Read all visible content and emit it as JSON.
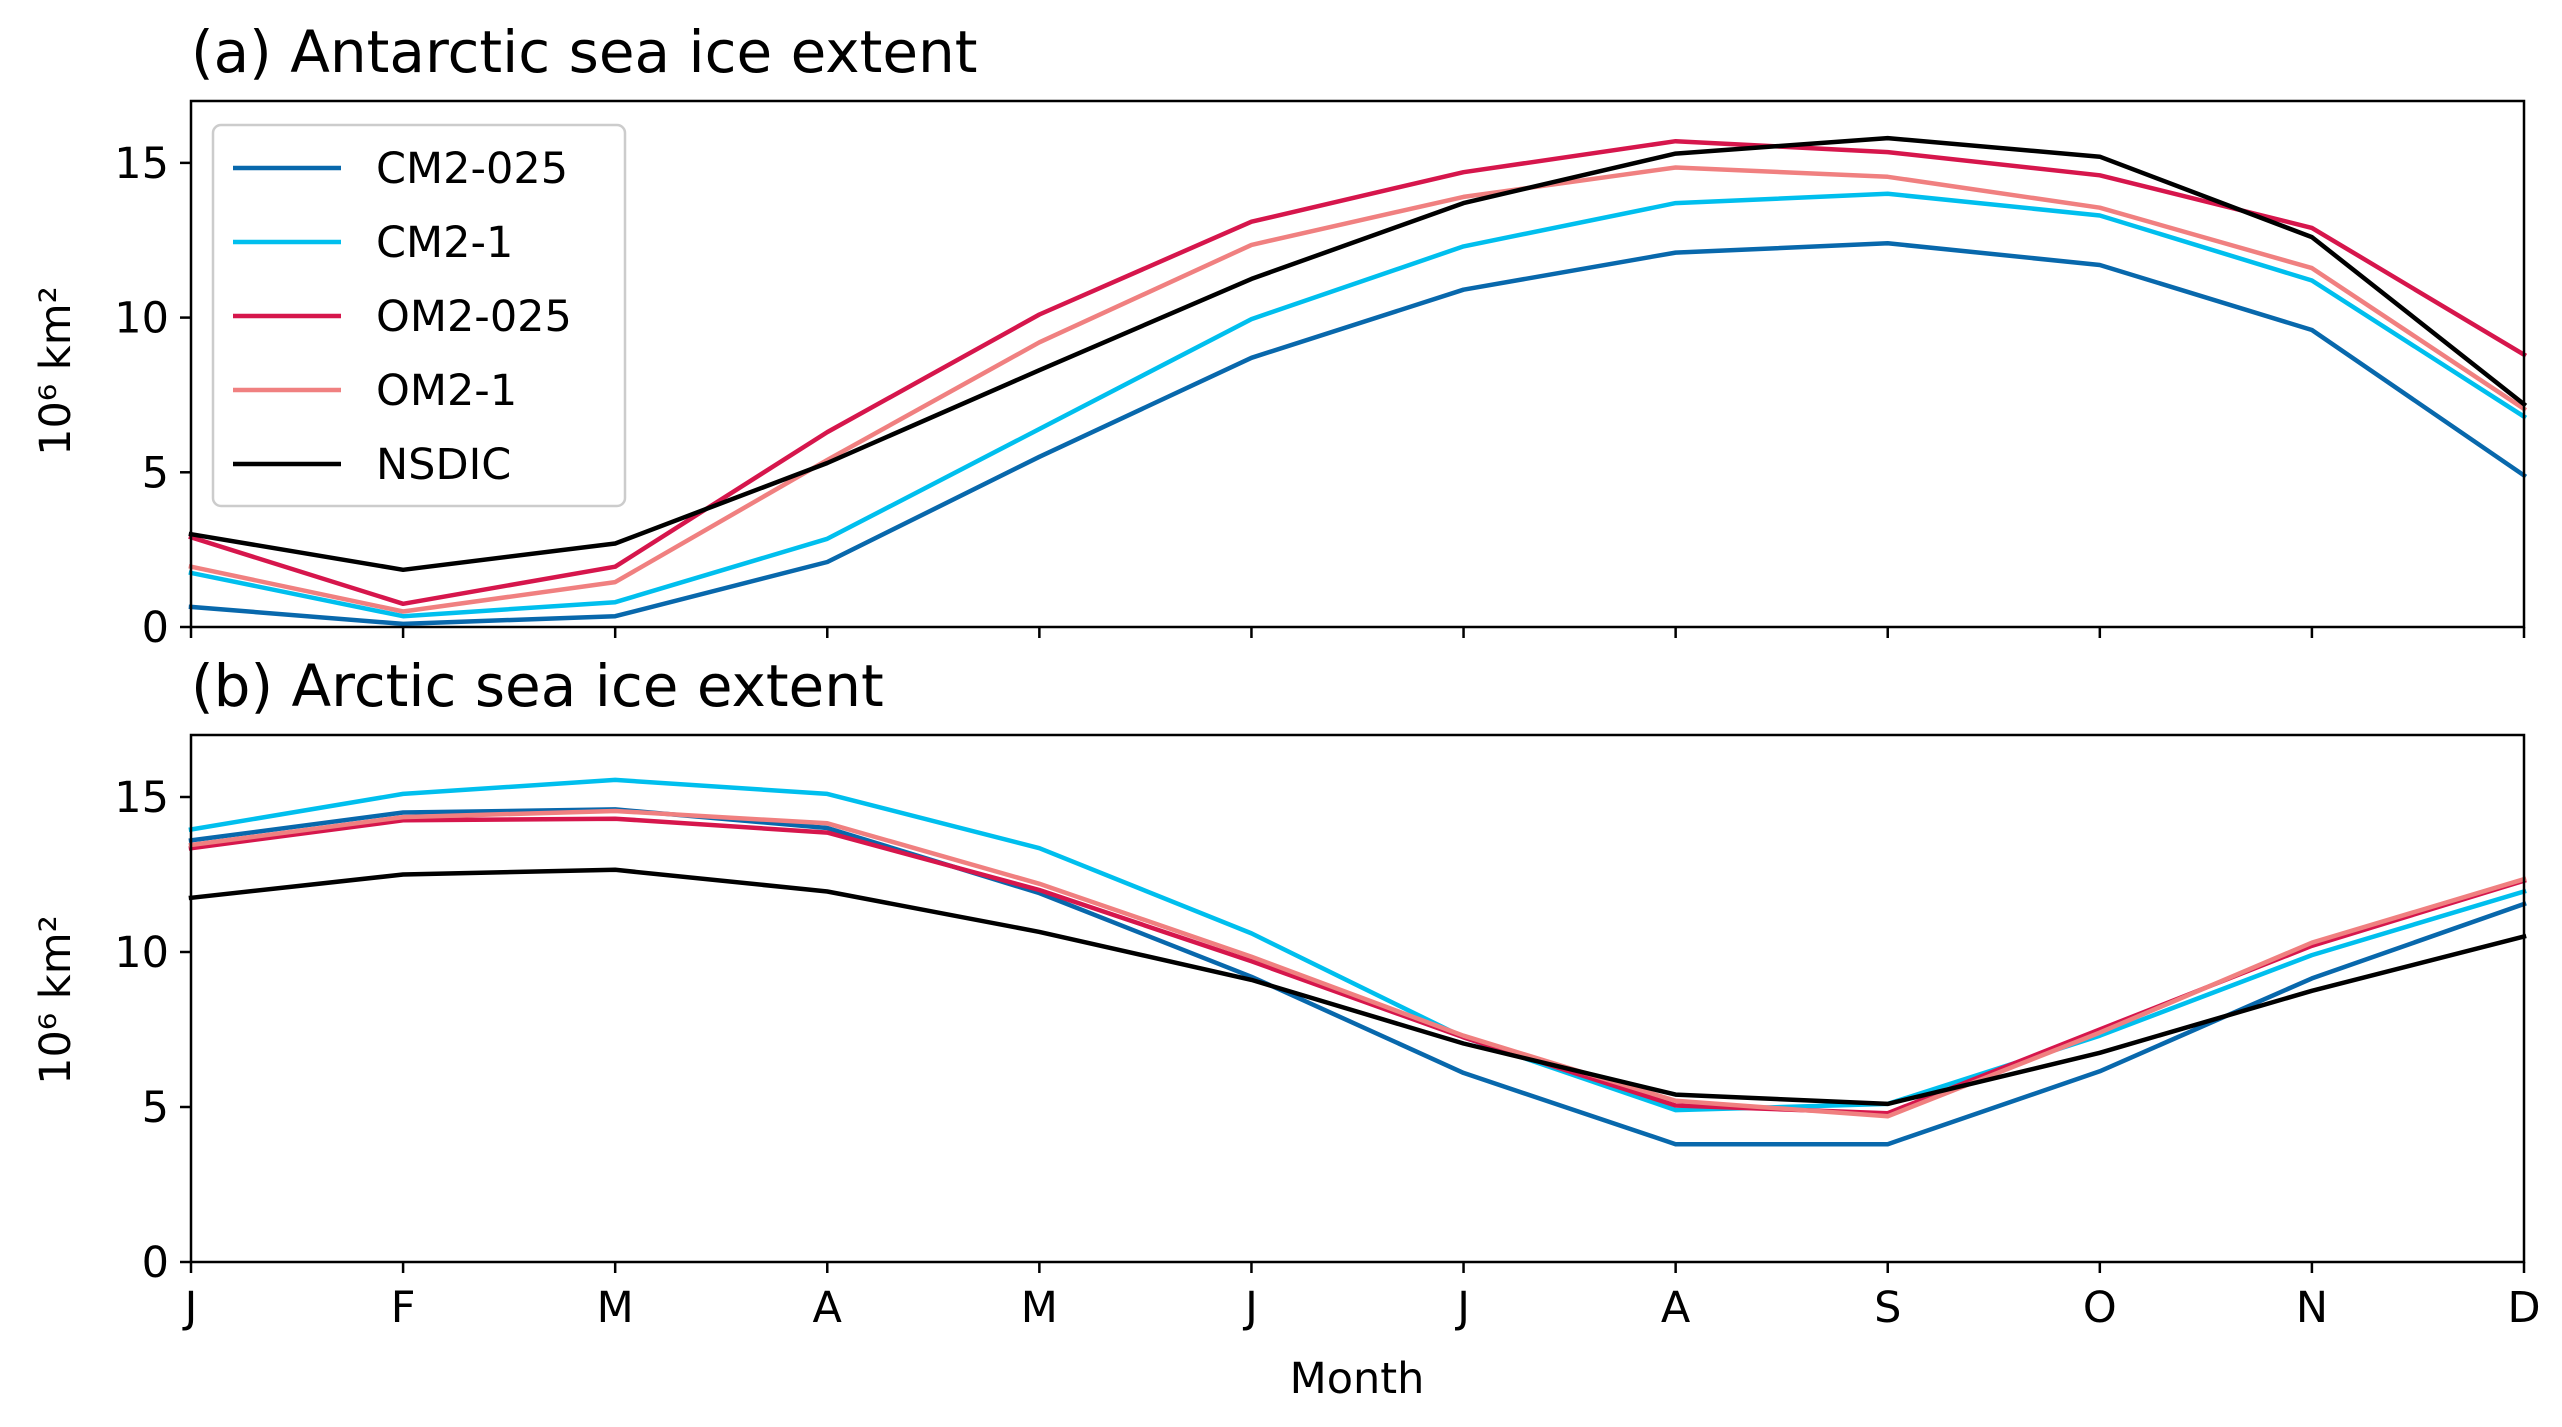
{
  "chart_data": [
    {
      "type": "line",
      "title": "(a) Antarctic sea ice extent",
      "xlabel": "",
      "ylabel": "10⁶ km²",
      "x": [
        "J",
        "F",
        "M",
        "A",
        "M",
        "J",
        "J",
        "A",
        "S",
        "O",
        "N",
        "D"
      ],
      "ylim": [
        0,
        17
      ],
      "yticks": [
        0,
        5,
        10,
        15
      ],
      "show_xtick_labels": false,
      "grid": false,
      "legend": "upper-left",
      "series": [
        {
          "name": "CM2-025",
          "color": "#0868ac",
          "values": [
            0.65,
            0.1,
            0.35,
            2.1,
            5.5,
            8.7,
            10.9,
            12.1,
            12.4,
            11.7,
            9.6,
            4.9
          ]
        },
        {
          "name": "CM2-1",
          "color": "#00bfee",
          "values": [
            1.75,
            0.35,
            0.8,
            2.85,
            6.4,
            9.95,
            12.3,
            13.7,
            14.0,
            13.3,
            11.2,
            6.8
          ]
        },
        {
          "name": "OM2-025",
          "color": "#d6164c",
          "values": [
            2.9,
            0.75,
            1.95,
            6.3,
            10.1,
            13.1,
            14.7,
            15.7,
            15.35,
            14.6,
            12.9,
            8.8
          ]
        },
        {
          "name": "OM2-1",
          "color": "#f08080",
          "values": [
            1.95,
            0.5,
            1.45,
            5.4,
            9.2,
            12.35,
            13.9,
            14.85,
            14.55,
            13.55,
            11.6,
            7.05
          ]
        },
        {
          "name": "NSDIC",
          "color": "#000000",
          "values": [
            3.0,
            1.85,
            2.7,
            5.3,
            8.3,
            11.25,
            13.7,
            15.3,
            15.8,
            15.2,
            12.6,
            7.2
          ]
        }
      ]
    },
    {
      "type": "line",
      "title": "(b) Arctic sea ice extent",
      "xlabel": "Month",
      "ylabel": "10⁶ km²",
      "x": [
        "J",
        "F",
        "M",
        "A",
        "M",
        "J",
        "J",
        "A",
        "S",
        "O",
        "N",
        "D"
      ],
      "ylim": [
        0,
        17
      ],
      "yticks": [
        0,
        5,
        10,
        15
      ],
      "show_xtick_labels": true,
      "grid": false,
      "series": [
        {
          "name": "CM2-025",
          "color": "#0868ac",
          "values": [
            13.6,
            14.5,
            14.6,
            14.0,
            11.9,
            9.2,
            6.1,
            3.8,
            3.8,
            6.15,
            9.15,
            11.55
          ]
        },
        {
          "name": "CM2-1",
          "color": "#00bfee",
          "values": [
            13.95,
            15.1,
            15.55,
            15.1,
            13.35,
            10.6,
            7.25,
            4.9,
            5.1,
            7.3,
            9.9,
            11.95
          ]
        },
        {
          "name": "OM2-025",
          "color": "#d6164c",
          "values": [
            13.35,
            14.25,
            14.3,
            13.85,
            12.0,
            9.7,
            7.25,
            5.05,
            4.8,
            7.5,
            10.2,
            12.3
          ]
        },
        {
          "name": "OM2-1",
          "color": "#f08080",
          "values": [
            13.45,
            14.35,
            14.55,
            14.15,
            12.2,
            9.85,
            7.3,
            5.2,
            4.7,
            7.4,
            10.3,
            12.35
          ]
        },
        {
          "name": "NSDIC",
          "color": "#000000",
          "values": [
            11.75,
            12.5,
            12.65,
            11.95,
            10.65,
            9.1,
            7.05,
            5.4,
            5.1,
            6.75,
            8.75,
            10.5
          ]
        }
      ]
    }
  ]
}
